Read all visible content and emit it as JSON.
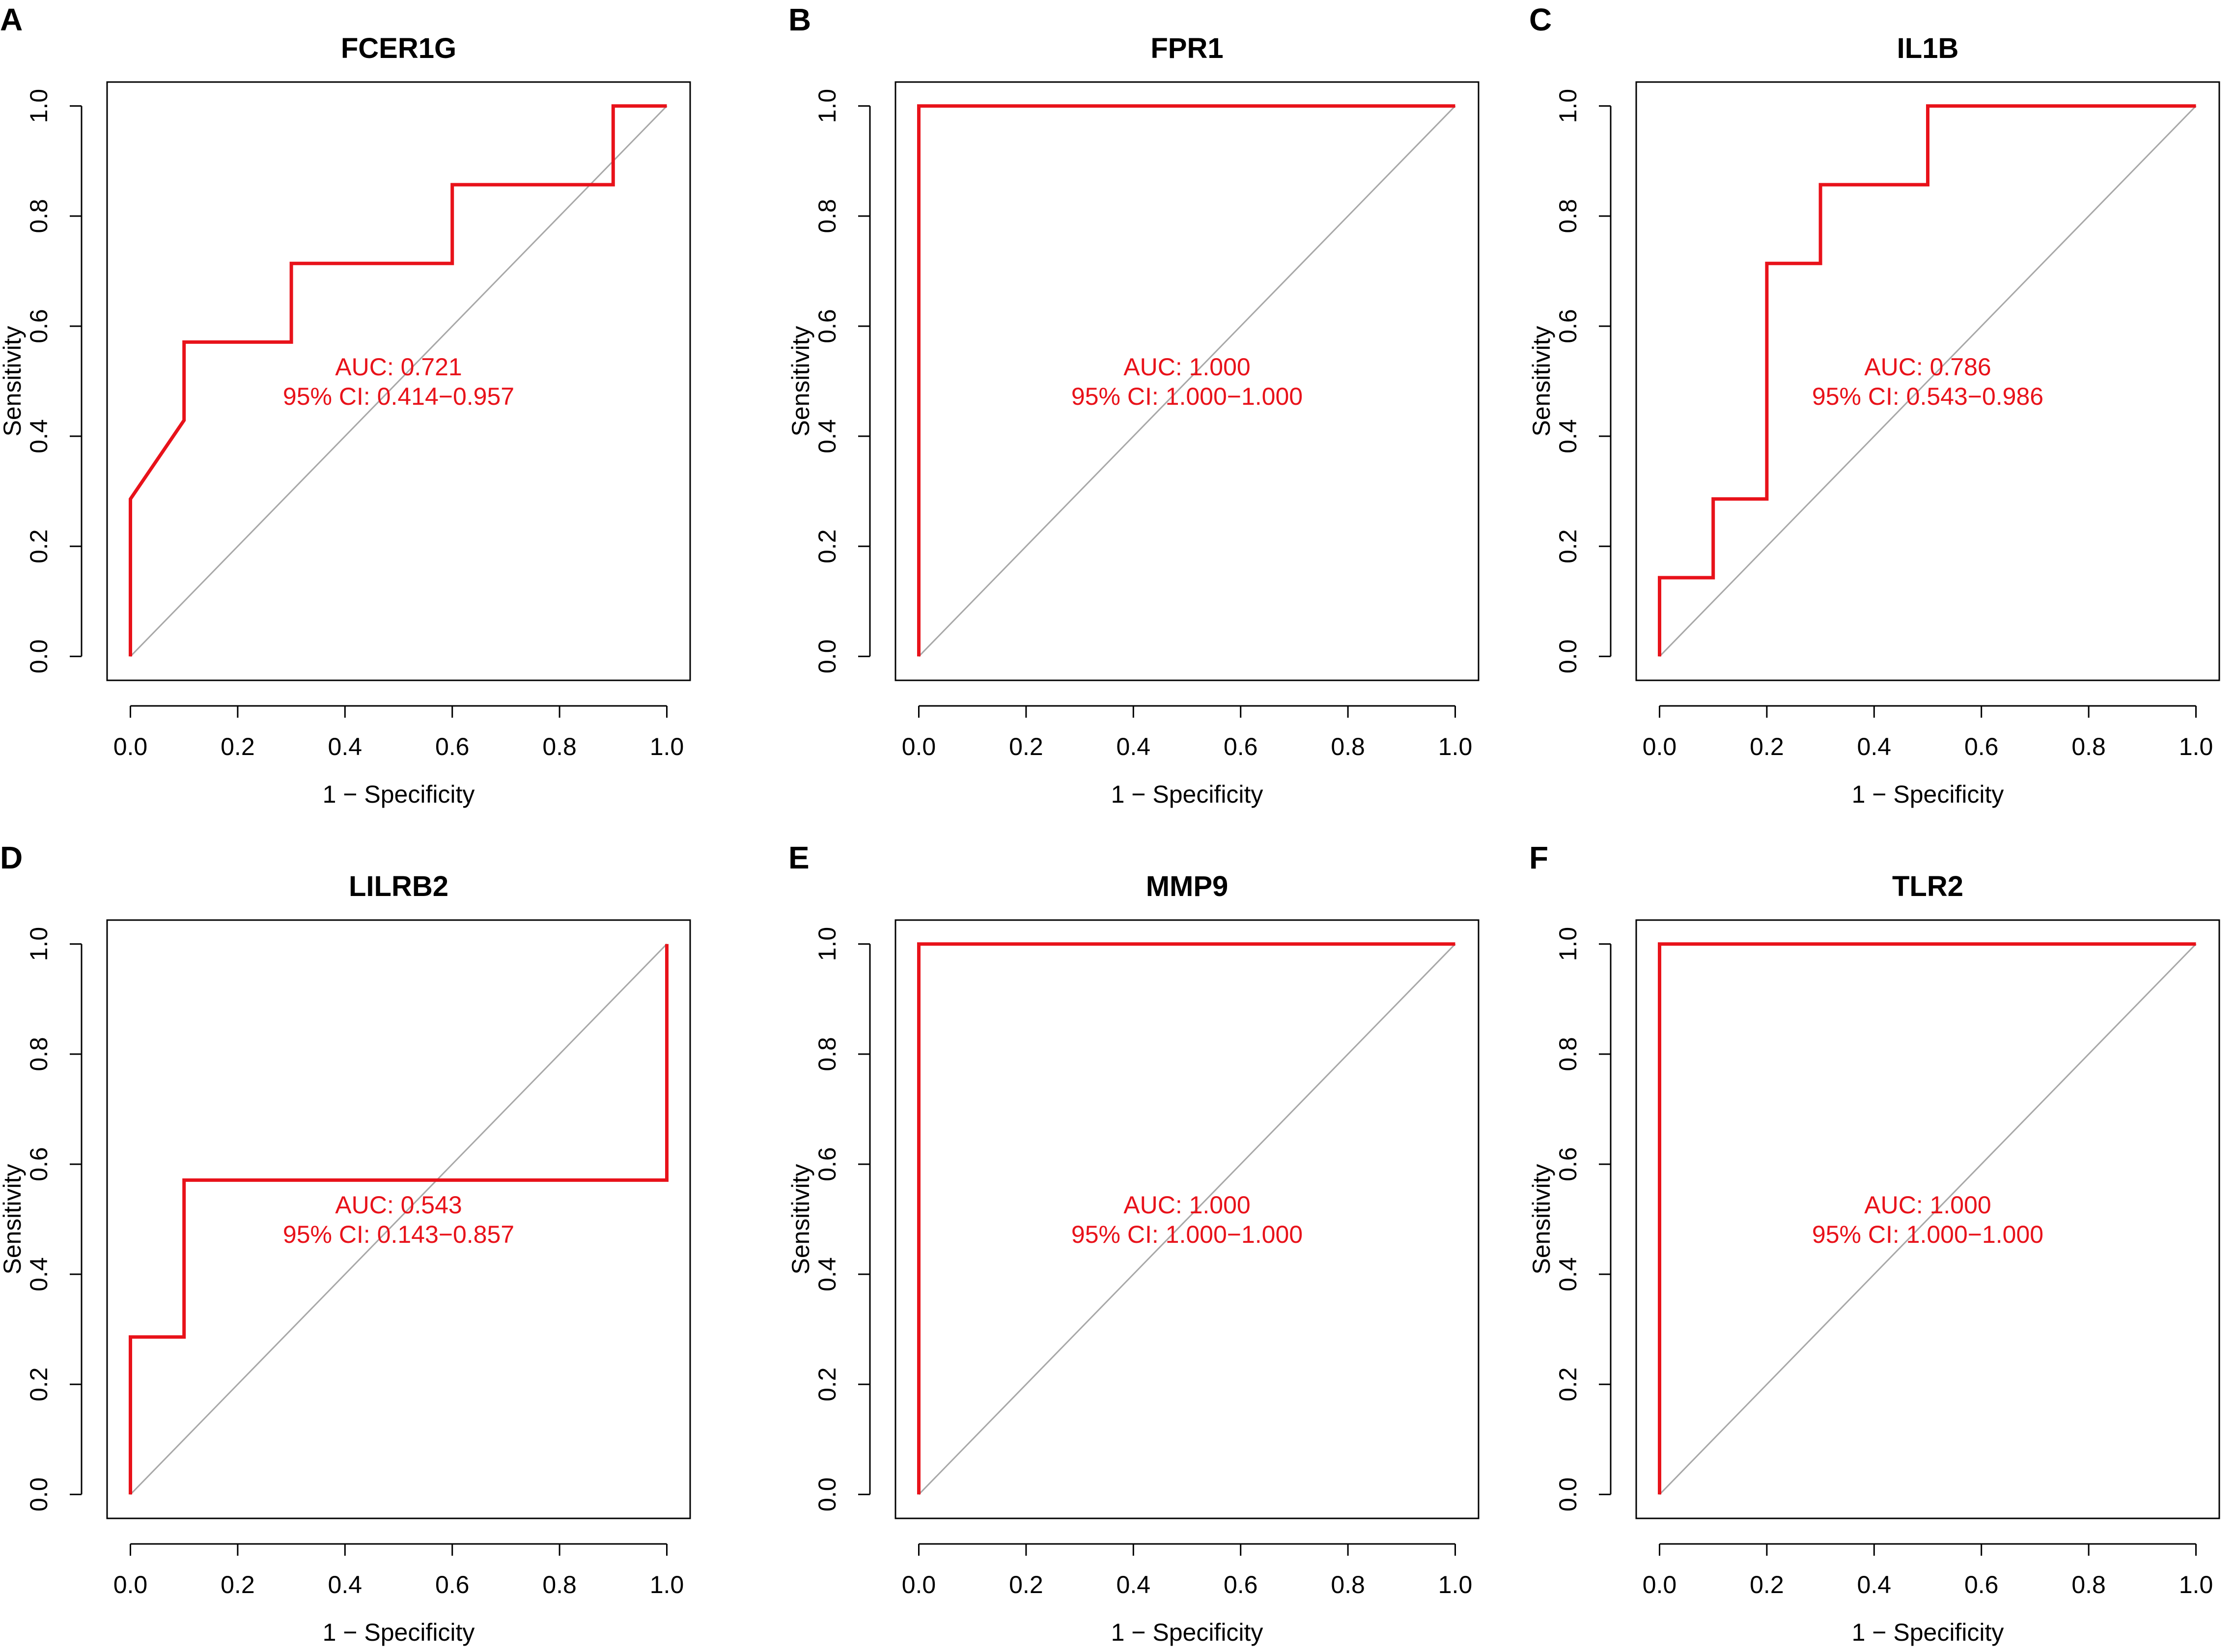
{
  "figure": {
    "panels_count": 6,
    "colors": {
      "roc": "#e8121a",
      "diagonal": "#a8a8a8",
      "axis": "#000000",
      "annotation": "#e8121a"
    }
  },
  "chart_data": [
    {
      "type": "line",
      "panel_label": "A",
      "title": "FCER1G",
      "xlabel": "1 − Specificity",
      "ylabel": "Sensitivity",
      "xlim": [
        0,
        1
      ],
      "ylim": [
        0,
        1
      ],
      "xticks": [
        "0.0",
        "0.2",
        "0.4",
        "0.6",
        "0.8",
        "1.0"
      ],
      "yticks": [
        "0.0",
        "0.2",
        "0.4",
        "0.6",
        "0.8",
        "1.0"
      ],
      "auc_text": "AUC: 0.721",
      "ci_text": "95% CI: 0.414−0.957",
      "roc": {
        "x": [
          0,
          0,
          0.1,
          0.1,
          0.3,
          0.3,
          0.6,
          0.6,
          0.9,
          0.9,
          1.0
        ],
        "y": [
          0,
          0.286,
          0.429,
          0.571,
          0.571,
          0.714,
          0.714,
          0.857,
          0.857,
          1.0,
          1.0
        ]
      }
    },
    {
      "type": "line",
      "panel_label": "B",
      "title": "FPR1",
      "xlabel": "1 − Specificity",
      "ylabel": "Sensitivity",
      "xlim": [
        0,
        1
      ],
      "ylim": [
        0,
        1
      ],
      "xticks": [
        "0.0",
        "0.2",
        "0.4",
        "0.6",
        "0.8",
        "1.0"
      ],
      "yticks": [
        "0.0",
        "0.2",
        "0.4",
        "0.6",
        "0.8",
        "1.0"
      ],
      "auc_text": "AUC: 1.000",
      "ci_text": "95% CI: 1.000−1.000",
      "roc": {
        "x": [
          0,
          0,
          1.0
        ],
        "y": [
          0,
          1.0,
          1.0
        ]
      }
    },
    {
      "type": "line",
      "panel_label": "C",
      "title": "IL1B",
      "xlabel": "1 − Specificity",
      "ylabel": "Sensitivity",
      "xlim": [
        0,
        1
      ],
      "ylim": [
        0,
        1
      ],
      "xticks": [
        "0.0",
        "0.2",
        "0.4",
        "0.6",
        "0.8",
        "1.0"
      ],
      "yticks": [
        "0.0",
        "0.2",
        "0.4",
        "0.6",
        "0.8",
        "1.0"
      ],
      "auc_text": "AUC: 0.786",
      "ci_text": "95% CI: 0.543−0.986",
      "roc": {
        "x": [
          0,
          0,
          0.1,
          0.1,
          0.2,
          0.2,
          0.3,
          0.3,
          0.5,
          0.5,
          1.0
        ],
        "y": [
          0,
          0.143,
          0.143,
          0.286,
          0.286,
          0.714,
          0.714,
          0.857,
          0.857,
          1.0,
          1.0
        ]
      }
    },
    {
      "type": "line",
      "panel_label": "D",
      "title": "LILRB2",
      "xlabel": "1 − Specificity",
      "ylabel": "Sensitivity",
      "xlim": [
        0,
        1
      ],
      "ylim": [
        0,
        1
      ],
      "xticks": [
        "0.0",
        "0.2",
        "0.4",
        "0.6",
        "0.8",
        "1.0"
      ],
      "yticks": [
        "0.0",
        "0.2",
        "0.4",
        "0.6",
        "0.8",
        "1.0"
      ],
      "auc_text": "AUC: 0.543",
      "ci_text": "95% CI: 0.143−0.857",
      "roc": {
        "x": [
          0,
          0,
          0.1,
          0.1,
          1.0,
          1.0
        ],
        "y": [
          0,
          0.286,
          0.286,
          0.571,
          0.571,
          1.0
        ]
      }
    },
    {
      "type": "line",
      "panel_label": "E",
      "title": "MMP9",
      "xlabel": "1 − Specificity",
      "ylabel": "Sensitivity",
      "xlim": [
        0,
        1
      ],
      "ylim": [
        0,
        1
      ],
      "xticks": [
        "0.0",
        "0.2",
        "0.4",
        "0.6",
        "0.8",
        "1.0"
      ],
      "yticks": [
        "0.0",
        "0.2",
        "0.4",
        "0.6",
        "0.8",
        "1.0"
      ],
      "auc_text": "AUC: 1.000",
      "ci_text": "95% CI: 1.000−1.000",
      "roc": {
        "x": [
          0,
          0,
          1.0
        ],
        "y": [
          0,
          1.0,
          1.0
        ]
      }
    },
    {
      "type": "line",
      "panel_label": "F",
      "title": "TLR2",
      "xlabel": "1 − Specificity",
      "ylabel": "Sensitivity",
      "xlim": [
        0,
        1
      ],
      "ylim": [
        0,
        1
      ],
      "xticks": [
        "0.0",
        "0.2",
        "0.4",
        "0.6",
        "0.8",
        "1.0"
      ],
      "yticks": [
        "0.0",
        "0.2",
        "0.4",
        "0.6",
        "0.8",
        "1.0"
      ],
      "auc_text": "AUC: 1.000",
      "ci_text": "95% CI: 1.000−1.000",
      "roc": {
        "x": [
          0,
          0,
          1.0
        ],
        "y": [
          0,
          1.0,
          1.0
        ]
      }
    }
  ]
}
